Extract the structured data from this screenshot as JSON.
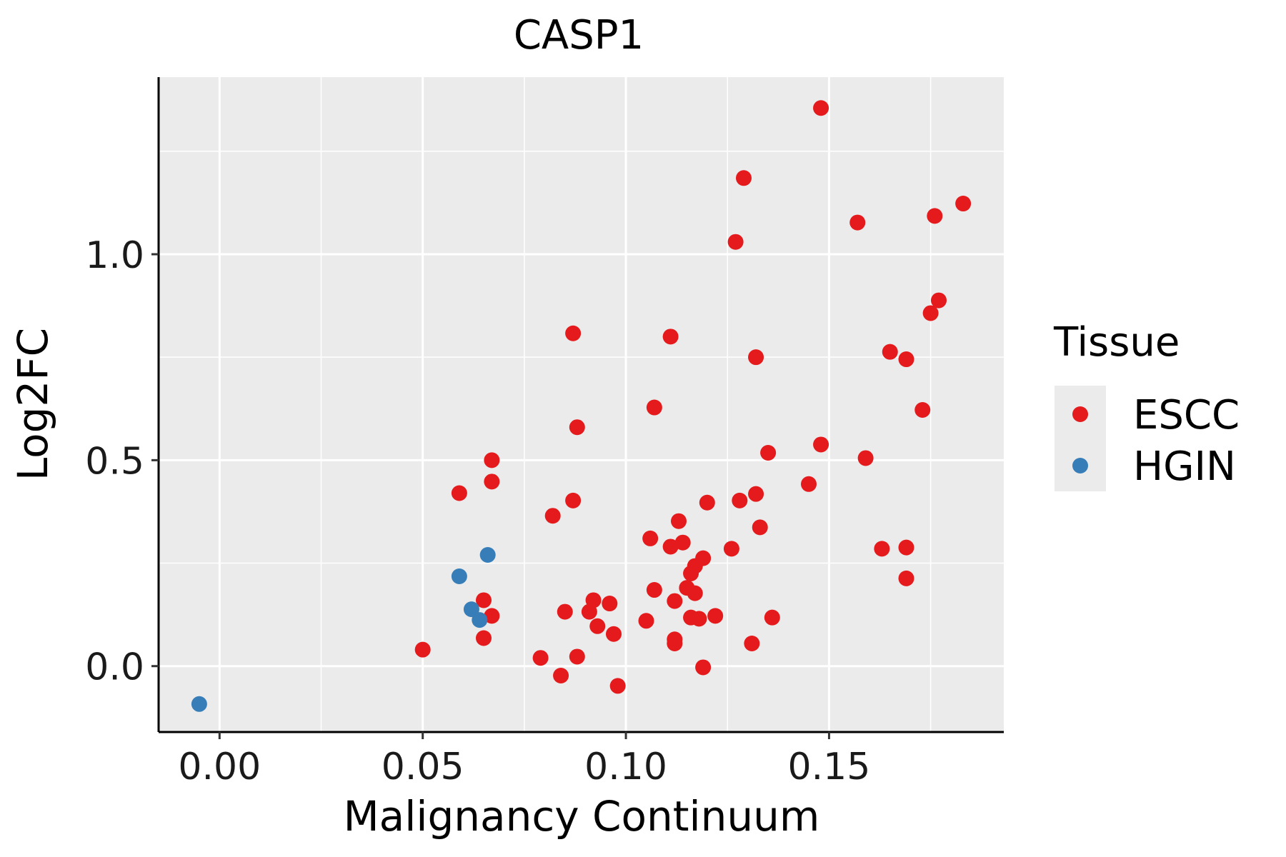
{
  "chart_data": {
    "type": "scatter",
    "title": "CASP1",
    "xlabel": "Malignancy Continuum",
    "ylabel": "Log2FC",
    "xlim": [
      -0.015,
      0.193
    ],
    "ylim": [
      -0.16,
      1.43
    ],
    "x_ticks": [
      0.0,
      0.05,
      0.1,
      0.15
    ],
    "x_tick_labels": [
      "0.00",
      "0.05",
      "0.10",
      "0.15"
    ],
    "y_ticks": [
      0.0,
      0.5,
      1.0
    ],
    "y_tick_labels": [
      "0.0",
      "0.5",
      "1.0"
    ],
    "legend_title": "Tissue",
    "legend_position": "right",
    "series": [
      {
        "name": "ESCC",
        "color": "#e41a1c",
        "points": [
          [
            0.148,
            1.355
          ],
          [
            0.129,
            1.185
          ],
          [
            0.183,
            1.123
          ],
          [
            0.176,
            1.093
          ],
          [
            0.157,
            1.077
          ],
          [
            0.127,
            1.03
          ],
          [
            0.177,
            0.888
          ],
          [
            0.175,
            0.857
          ],
          [
            0.087,
            0.808
          ],
          [
            0.111,
            0.8
          ],
          [
            0.165,
            0.763
          ],
          [
            0.132,
            0.75
          ],
          [
            0.169,
            0.745
          ],
          [
            0.107,
            0.628
          ],
          [
            0.173,
            0.622
          ],
          [
            0.088,
            0.58
          ],
          [
            0.148,
            0.538
          ],
          [
            0.135,
            0.518
          ],
          [
            0.067,
            0.5
          ],
          [
            0.159,
            0.505
          ],
          [
            0.067,
            0.448
          ],
          [
            0.145,
            0.442
          ],
          [
            0.059,
            0.42
          ],
          [
            0.132,
            0.418
          ],
          [
            0.128,
            0.402
          ],
          [
            0.087,
            0.402
          ],
          [
            0.12,
            0.397
          ],
          [
            0.082,
            0.365
          ],
          [
            0.113,
            0.352
          ],
          [
            0.133,
            0.337
          ],
          [
            0.106,
            0.31
          ],
          [
            0.114,
            0.3
          ],
          [
            0.111,
            0.29
          ],
          [
            0.126,
            0.285
          ],
          [
            0.163,
            0.285
          ],
          [
            0.169,
            0.288
          ],
          [
            0.119,
            0.262
          ],
          [
            0.117,
            0.243
          ],
          [
            0.116,
            0.225
          ],
          [
            0.169,
            0.213
          ],
          [
            0.107,
            0.185
          ],
          [
            0.115,
            0.19
          ],
          [
            0.117,
            0.177
          ],
          [
            0.065,
            0.16
          ],
          [
            0.092,
            0.16
          ],
          [
            0.112,
            0.158
          ],
          [
            0.096,
            0.152
          ],
          [
            0.085,
            0.132
          ],
          [
            0.091,
            0.132
          ],
          [
            0.067,
            0.122
          ],
          [
            0.122,
            0.122
          ],
          [
            0.116,
            0.118
          ],
          [
            0.118,
            0.115
          ],
          [
            0.136,
            0.118
          ],
          [
            0.105,
            0.11
          ],
          [
            0.093,
            0.097
          ],
          [
            0.097,
            0.078
          ],
          [
            0.065,
            0.068
          ],
          [
            0.112,
            0.065
          ],
          [
            0.112,
            0.055
          ],
          [
            0.131,
            0.055
          ],
          [
            0.05,
            0.04
          ],
          [
            0.079,
            0.02
          ],
          [
            0.088,
            0.023
          ],
          [
            0.119,
            -0.003
          ],
          [
            0.084,
            -0.023
          ],
          [
            0.098,
            -0.048
          ]
        ]
      },
      {
        "name": "HGIN",
        "color": "#377eb8",
        "points": [
          [
            0.066,
            0.27
          ],
          [
            0.059,
            0.218
          ],
          [
            0.062,
            0.138
          ],
          [
            0.064,
            0.112
          ],
          [
            -0.005,
            -0.092
          ]
        ]
      }
    ]
  }
}
